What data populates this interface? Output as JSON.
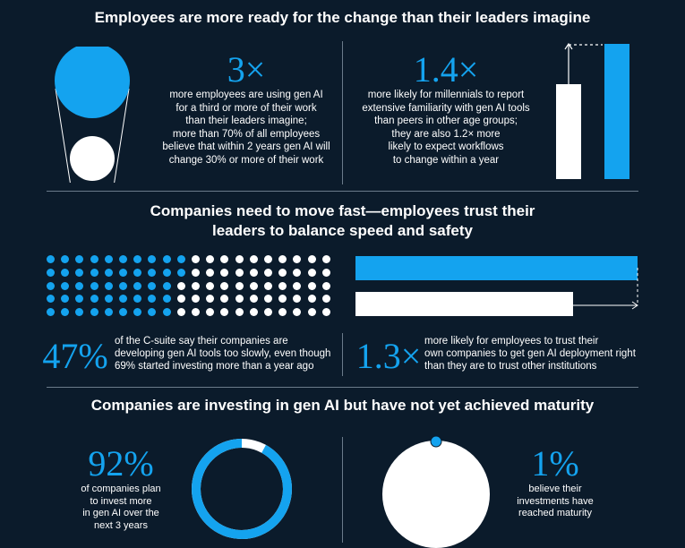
{
  "section1": {
    "title": "Employees are more ready for the change than their leaders imagine",
    "left": {
      "stat": "3×",
      "text": "more employees are using gen AI\nfor a third or more of their work\nthan their leaders imagine;\nmore than 70% of all employees\nbelieve that within 2 years gen AI will\nchange 30% or more of their work"
    },
    "right": {
      "stat": "1.4×",
      "text": "more likely for millennials to report\nextensive familiarity with gen AI tools\nthan peers in other age groups;\nthey are also 1.2× more\nlikely to expect workflows\nto change within a year"
    }
  },
  "section2": {
    "title": "Companies need to move fast—employees trust their\nleaders to balance speed and safety",
    "left": {
      "stat": "47%",
      "text": "of the C-suite say their companies are\ndeveloping gen AI tools too slowly, even though\n69% started investing more than a year ago",
      "dot_grid": {
        "rows": 5,
        "cols": 20,
        "blue_fraction": 0.47
      }
    },
    "right": {
      "stat": "1.3×",
      "text": "more likely for employees to trust their\nown companies to get gen AI deployment right\nthan they are to trust other institutions"
    }
  },
  "section3": {
    "title": "Companies are investing in gen AI but have not yet achieved maturity",
    "left": {
      "stat": "92%",
      "text": "of companies plan\nto invest more\nin gen AI over the\nnext 3 years",
      "ring_fraction": 0.92
    },
    "right": {
      "stat": "1%",
      "text": "believe their\ninvestments have\nreached maturity"
    }
  },
  "colors": {
    "background": "#0b1b2b",
    "accent": "#14a3ef",
    "white": "#ffffff",
    "divider": "#6b7b8a"
  }
}
